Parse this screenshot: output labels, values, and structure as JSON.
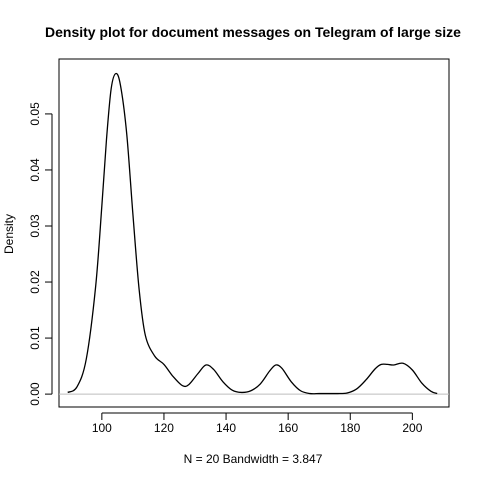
{
  "chart_data": {
    "type": "line",
    "title": "Density plot for document messages on Telegram of large size",
    "xlabel": "N = 20   Bandwidth = 3.847",
    "ylabel": "Density",
    "xlim": [
      86.2,
      211.8
    ],
    "ylim": [
      -0.0023,
      0.0598
    ],
    "x_ticks": [
      100,
      120,
      140,
      160,
      180,
      200
    ],
    "x_tick_labels": [
      "100",
      "120",
      "140",
      "160",
      "180",
      "200"
    ],
    "y_ticks": [
      0.0,
      0.01,
      0.02,
      0.03,
      0.04,
      0.05
    ],
    "y_tick_labels": [
      "0.00",
      "0.01",
      "0.02",
      "0.03",
      "0.04",
      "0.05"
    ],
    "baseline": 0,
    "baseline_color": "#bebebe",
    "line_color": "#000000",
    "grid": false,
    "legend": "none",
    "series": [
      {
        "x": [
          89,
          92,
          95,
          98,
          100,
          101.5,
          103,
          104.5,
          106,
          108,
          110,
          112,
          114,
          117,
          120,
          123,
          126,
          128,
          131,
          133.5,
          136,
          139,
          142,
          145,
          148,
          151,
          154,
          156,
          158,
          161,
          164,
          167,
          170,
          173,
          176,
          179,
          182,
          185,
          188,
          190,
          192,
          194,
          197,
          200,
          203,
          206,
          208
        ],
        "y": [
          0.0003,
          0.0013,
          0.0063,
          0.0192,
          0.0336,
          0.0455,
          0.0545,
          0.0572,
          0.0551,
          0.0465,
          0.0321,
          0.0187,
          0.0105,
          0.0068,
          0.0053,
          0.0031,
          0.0015,
          0.0017,
          0.0037,
          0.0052,
          0.0044,
          0.0022,
          0.0007,
          0.0003,
          0.0006,
          0.0018,
          0.0041,
          0.0052,
          0.0046,
          0.0022,
          0.0006,
          0.0001,
          0.0001,
          0.0001,
          0.0001,
          0.0002,
          0.0009,
          0.0025,
          0.0045,
          0.0053,
          0.0053,
          0.0052,
          0.0055,
          0.0043,
          0.002,
          0.0005,
          0.0001
        ]
      }
    ]
  }
}
